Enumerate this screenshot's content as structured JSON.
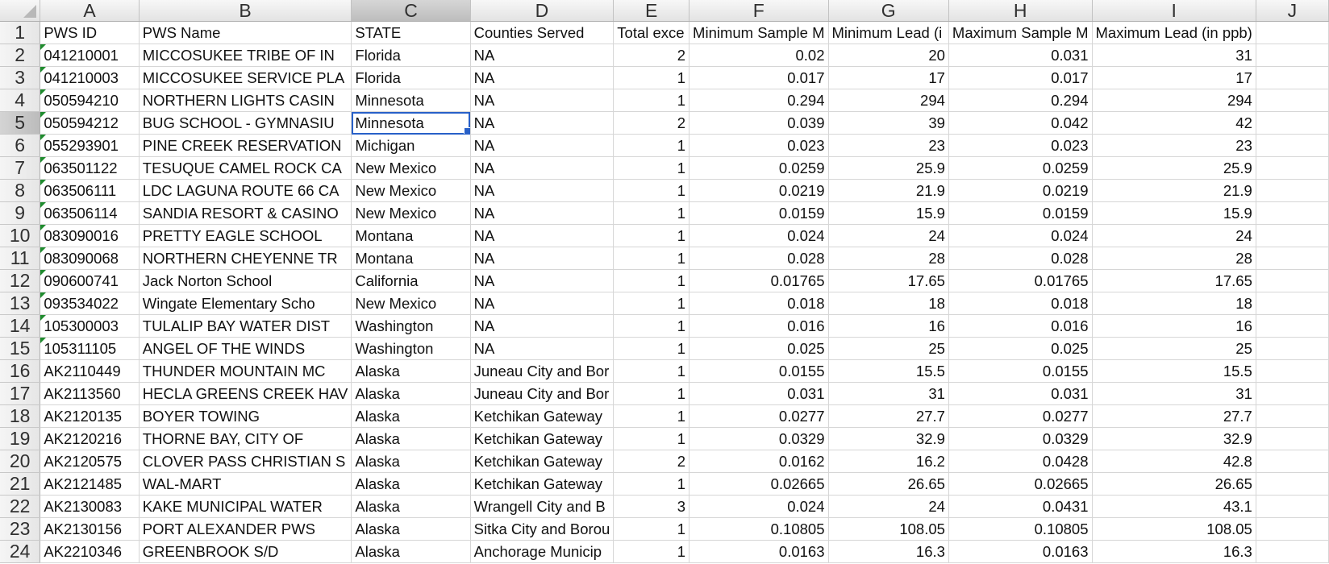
{
  "columns": [
    "A",
    "B",
    "C",
    "D",
    "E",
    "F",
    "G",
    "H",
    "I",
    "J"
  ],
  "selected_column": "C",
  "selected_row": "5",
  "rows": [
    {
      "n": "1",
      "cells": [
        "PWS ID",
        "PWS Name",
        "STATE",
        "Counties Served",
        "Total exce",
        "Minimum Sample M",
        "Minimum Lead (i",
        "Maximum Sample M",
        "Maximum Lead (in ppb)",
        ""
      ]
    },
    {
      "n": "2",
      "cells": [
        "041210001",
        "MICCOSUKEE TRIBE OF IN",
        "Florida",
        "NA",
        "2",
        "0.02",
        "20",
        "0.031",
        "31",
        ""
      ]
    },
    {
      "n": "3",
      "cells": [
        "041210003",
        "MICCOSUKEE SERVICE PLA",
        "Florida",
        "NA",
        "1",
        "0.017",
        "17",
        "0.017",
        "17",
        ""
      ]
    },
    {
      "n": "4",
      "cells": [
        "050594210",
        "NORTHERN LIGHTS CASIN",
        "Minnesota",
        "NA",
        "1",
        "0.294",
        "294",
        "0.294",
        "294",
        ""
      ]
    },
    {
      "n": "5",
      "cells": [
        "050594212",
        "BUG SCHOOL - GYMNASIU",
        "Minnesota",
        "NA",
        "2",
        "0.039",
        "39",
        "0.042",
        "42",
        ""
      ]
    },
    {
      "n": "6",
      "cells": [
        "055293901",
        "PINE CREEK RESERVATION",
        "Michigan",
        "NA",
        "1",
        "0.023",
        "23",
        "0.023",
        "23",
        ""
      ]
    },
    {
      "n": "7",
      "cells": [
        "063501122",
        "TESUQUE CAMEL ROCK CA",
        "New Mexico",
        "NA",
        "1",
        "0.0259",
        "25.9",
        "0.0259",
        "25.9",
        ""
      ]
    },
    {
      "n": "8",
      "cells": [
        "063506111",
        "LDC LAGUNA ROUTE 66 CA",
        "New Mexico",
        "NA",
        "1",
        "0.0219",
        "21.9",
        "0.0219",
        "21.9",
        ""
      ]
    },
    {
      "n": "9",
      "cells": [
        "063506114",
        "SANDIA RESORT & CASINO",
        "New Mexico",
        "NA",
        "1",
        "0.0159",
        "15.9",
        "0.0159",
        "15.9",
        ""
      ]
    },
    {
      "n": "10",
      "cells": [
        "083090016",
        "PRETTY EAGLE SCHOOL",
        "Montana",
        "NA",
        "1",
        "0.024",
        "24",
        "0.024",
        "24",
        ""
      ]
    },
    {
      "n": "11",
      "cells": [
        "083090068",
        "NORTHERN CHEYENNE TR",
        "Montana",
        "NA",
        "1",
        "0.028",
        "28",
        "0.028",
        "28",
        ""
      ]
    },
    {
      "n": "12",
      "cells": [
        "090600741",
        "Jack Norton School",
        "California",
        "NA",
        "1",
        "0.01765",
        "17.65",
        "0.01765",
        "17.65",
        ""
      ]
    },
    {
      "n": "13",
      "cells": [
        "093534022",
        "Wingate Elementary Scho",
        "New Mexico",
        "NA",
        "1",
        "0.018",
        "18",
        "0.018",
        "18",
        ""
      ]
    },
    {
      "n": "14",
      "cells": [
        "105300003",
        "TULALIP BAY WATER DIST",
        "Washington",
        "NA",
        "1",
        "0.016",
        "16",
        "0.016",
        "16",
        ""
      ]
    },
    {
      "n": "15",
      "cells": [
        "105311105",
        "ANGEL OF THE WINDS",
        "Washington",
        "NA",
        "1",
        "0.025",
        "25",
        "0.025",
        "25",
        ""
      ]
    },
    {
      "n": "16",
      "cells": [
        "AK2110449",
        "THUNDER MOUNTAIN MC",
        "Alaska",
        "Juneau City and Bor",
        "1",
        "0.0155",
        "15.5",
        "0.0155",
        "15.5",
        ""
      ]
    },
    {
      "n": "17",
      "cells": [
        "AK2113560",
        "HECLA GREENS CREEK HAV",
        "Alaska",
        "Juneau City and Bor",
        "1",
        "0.031",
        "31",
        "0.031",
        "31",
        ""
      ]
    },
    {
      "n": "18",
      "cells": [
        "AK2120135",
        "BOYER TOWING",
        "Alaska",
        "Ketchikan Gateway",
        "1",
        "0.0277",
        "27.7",
        "0.0277",
        "27.7",
        ""
      ]
    },
    {
      "n": "19",
      "cells": [
        "AK2120216",
        "THORNE BAY, CITY OF",
        "Alaska",
        "Ketchikan Gateway",
        "1",
        "0.0329",
        "32.9",
        "0.0329",
        "32.9",
        ""
      ]
    },
    {
      "n": "20",
      "cells": [
        "AK2120575",
        "CLOVER PASS CHRISTIAN S",
        "Alaska",
        "Ketchikan Gateway",
        "2",
        "0.0162",
        "16.2",
        "0.0428",
        "42.8",
        ""
      ]
    },
    {
      "n": "21",
      "cells": [
        "AK2121485",
        "WAL-MART",
        "Alaska",
        "Ketchikan Gateway",
        "1",
        "0.02665",
        "26.65",
        "0.02665",
        "26.65",
        ""
      ]
    },
    {
      "n": "22",
      "cells": [
        "AK2130083",
        "KAKE MUNICIPAL WATER",
        "Alaska",
        "Wrangell City and B",
        "3",
        "0.024",
        "24",
        "0.0431",
        "43.1",
        ""
      ]
    },
    {
      "n": "23",
      "cells": [
        "AK2130156",
        "PORT ALEXANDER PWS",
        "Alaska",
        "Sitka City and Borou",
        "1",
        "0.10805",
        "108.05",
        "0.10805",
        "108.05",
        ""
      ]
    },
    {
      "n": "24",
      "cells": [
        "AK2210346",
        "GREENBROOK S/D",
        "Alaska",
        "Anchorage Municip",
        "1",
        "0.0163",
        "16.3",
        "0.0163",
        "16.3",
        ""
      ]
    }
  ]
}
